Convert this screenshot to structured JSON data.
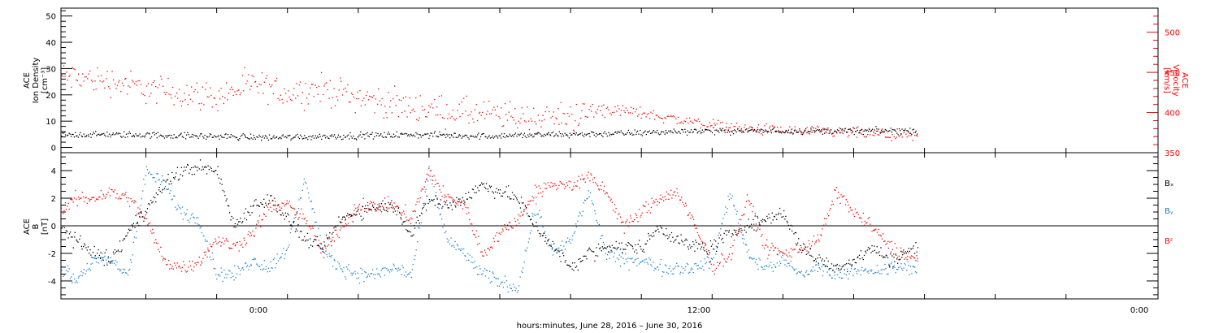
{
  "x_axis": {
    "title": "hours:minutes, June 28, 2016 – June 30, 2016",
    "tick_labels": [
      "0:00",
      "12:00",
      "0:00"
    ]
  },
  "colors": {
    "black": "#000000",
    "red": "#ff0000",
    "blue": "#1a7fd4"
  },
  "chart_data": [
    {
      "type": "scatter",
      "panel": "top",
      "ylabel": [
        "ACE",
        "Ion Density",
        "[cm⁻³]"
      ],
      "ylim": [
        -2,
        53
      ],
      "y_ticks": [
        0,
        10,
        20,
        30,
        40,
        50
      ],
      "y2label": [
        "ACE",
        "Velocity",
        "[km/s]"
      ],
      "y2lim": [
        350,
        530
      ],
      "y2_ticks": [
        350,
        400,
        450,
        500
      ],
      "x_range_hours": [
        -5.4,
        25.6
      ],
      "data_extent_hours": [
        -5.4,
        18.8
      ],
      "series": [
        {
          "axis": "left",
          "color": "black",
          "x_hours": [
            -5.4,
            -3.5,
            -1.5,
            0.5,
            2.5,
            4.5,
            6.5,
            8.5,
            10.5,
            12.5,
            14.5,
            16.5,
            18.8
          ],
          "values": [
            5,
            5,
            4.5,
            4,
            4.5,
            5,
            4.5,
            5,
            5.5,
            6.5,
            6.5,
            6.5,
            6.5
          ]
        },
        {
          "axis": "right",
          "color": "red",
          "x_hours": [
            -5.4,
            -4,
            -3,
            -2,
            -1,
            0,
            1,
            2,
            3,
            4,
            5,
            6,
            7,
            8,
            9,
            10,
            11,
            12,
            13,
            14,
            15,
            16,
            17,
            18,
            18.8
          ],
          "values": [
            445,
            440,
            430,
            425,
            420,
            435,
            425,
            430,
            420,
            410,
            405,
            400,
            397,
            393,
            395,
            405,
            400,
            392,
            385,
            380,
            378,
            376,
            375,
            372,
            370
          ]
        }
      ]
    },
    {
      "type": "scatter",
      "panel": "bottom",
      "ylabel": [
        "ACE",
        "B",
        "[nT]"
      ],
      "ylim": [
        -5.3,
        5.3
      ],
      "y_ticks": [
        -4,
        -2,
        0,
        2,
        4
      ],
      "x_range_hours": [
        -5.4,
        25.6
      ],
      "data_extent_hours": [
        -5.4,
        18.8
      ],
      "legend": [
        "Bₓ",
        "Bᵧ",
        "Bᶻ"
      ],
      "series": [
        {
          "name": "Bx",
          "color": "black",
          "x_hours": [
            -5.4,
            -4.8,
            -4,
            -3.5,
            -2.5,
            -2,
            -1.5,
            -1,
            -0.5,
            0,
            0.5,
            1,
            1.5,
            2,
            2.5,
            3,
            3.5,
            4,
            4.5,
            5,
            5.5,
            6,
            6.5,
            7,
            7.5,
            8,
            8.5,
            9,
            9.5,
            10,
            10.5,
            11,
            11.5,
            12,
            12.5,
            13,
            13.5,
            14,
            14.5,
            15,
            15.5,
            16,
            16.5,
            17,
            17.5,
            18,
            18.8
          ],
          "values": [
            0,
            -1.5,
            -2.5,
            -0.5,
            3,
            4,
            4.3,
            4,
            0,
            1.5,
            2,
            0.5,
            -1,
            -1.5,
            0.5,
            1,
            1.5,
            1.5,
            -0.5,
            2,
            1.5,
            2,
            3,
            2.5,
            2,
            0,
            -1.5,
            -3,
            -2,
            -1.5,
            -1.5,
            -1.5,
            0,
            -1,
            -1.5,
            -1.5,
            -0.5,
            0,
            0.5,
            1,
            -1.5,
            -2.5,
            -3,
            -2.5,
            -1.5,
            -2.5,
            -1.5
          ]
        },
        {
          "name": "By",
          "color": "blue",
          "x_hours": [
            -5.4,
            -5,
            -4.5,
            -4,
            -3.5,
            -3,
            -2.5,
            -2,
            -1.5,
            -1,
            -0.5,
            0,
            0.5,
            1,
            1.5,
            2,
            2.5,
            3,
            3.5,
            4,
            4.5,
            5,
            5.5,
            6,
            6.5,
            7,
            7.5,
            8,
            8.5,
            9,
            9.5,
            10,
            10.5,
            11,
            11.5,
            12,
            12.5,
            13,
            13.5,
            14,
            14.5,
            15,
            15.5,
            16,
            16.5,
            17,
            17.5,
            18,
            18.8
          ],
          "values": [
            -3,
            -4,
            -2.5,
            -2.5,
            -3.5,
            4,
            3,
            1,
            0.5,
            -3.5,
            -3.5,
            -2.5,
            -3,
            -1.5,
            3.5,
            -2,
            -3,
            -3.5,
            -3.5,
            -3,
            -3.5,
            4,
            -1,
            -2,
            -3.5,
            -4,
            -4.5,
            1.5,
            -2,
            -1,
            2.5,
            -2,
            -2.5,
            -2.5,
            -3,
            -3,
            -3,
            -2.5,
            2.5,
            -2,
            -3,
            -2.5,
            -3.5,
            -3,
            -3.5,
            -3,
            -3.5,
            -3,
            -3
          ]
        },
        {
          "name": "Bz",
          "color": "red",
          "x_hours": [
            -5.4,
            -5,
            -4.5,
            -4,
            -3.5,
            -3,
            -2.5,
            -2,
            -1.5,
            -1,
            -0.5,
            0,
            0.5,
            1,
            1.5,
            2,
            2.5,
            3,
            3.5,
            4,
            4.5,
            5,
            5.5,
            6,
            6.5,
            7,
            7.5,
            8,
            8.5,
            9,
            9.5,
            10,
            10.5,
            11,
            11.5,
            12,
            12.5,
            13,
            13.5,
            14,
            14.5,
            15,
            15.5,
            16,
            16.5,
            17,
            17.5,
            18,
            18.8
          ],
          "values": [
            1,
            2,
            2,
            2.5,
            2,
            0.5,
            -2.5,
            -3,
            -2.5,
            -1,
            -1.5,
            -0.5,
            1.5,
            1.5,
            0.5,
            -2,
            0,
            1.5,
            1.5,
            1.5,
            0.5,
            4,
            2,
            1.5,
            -2,
            -0.5,
            0.5,
            2.5,
            3,
            3,
            3.5,
            2.5,
            0,
            1,
            2,
            2.5,
            0,
            -3,
            -2,
            2,
            -1.5,
            -2,
            -1.5,
            -1,
            2.5,
            1,
            0,
            -1.5,
            -2.5
          ]
        }
      ]
    }
  ]
}
